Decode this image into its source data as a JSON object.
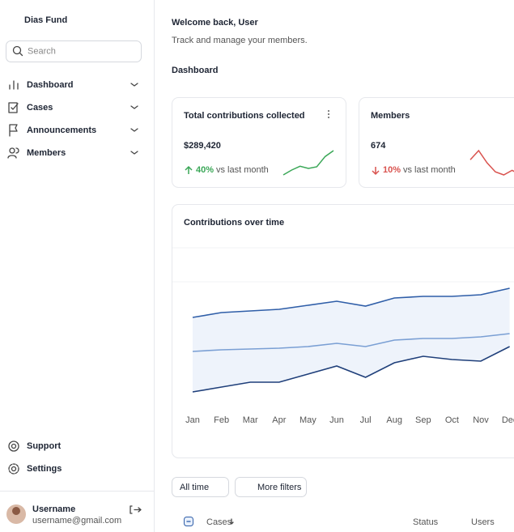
{
  "sidebar": {
    "brand": "Dias Fund",
    "search_placeholder": "Search",
    "nav": [
      "Dashboard",
      "Cases",
      "Announcements",
      "Members"
    ],
    "footer_nav": [
      "Support",
      "Settings"
    ],
    "user": {
      "name": "Username",
      "email": "username@gmail.com"
    }
  },
  "header": {
    "title": "Welcome back, User",
    "subtitle": "Track and manage your members.",
    "section": "Dashboard"
  },
  "cards": [
    {
      "title": "Total contributions collected",
      "value": "$289,420",
      "change": "40%",
      "change_note": "vs last month",
      "trend": "up",
      "color": "#3aa757",
      "sparkline": [
        10,
        28,
        42,
        34,
        40,
        78,
        100
      ]
    },
    {
      "title": "Members",
      "value": "674",
      "change": "10%",
      "change_note": "vs last month",
      "trend": "down",
      "color": "#d9534f",
      "sparkline": [
        70,
        100,
        60,
        30,
        20,
        35,
        20
      ]
    }
  ],
  "chart_data": {
    "type": "line",
    "title": "Contributions over time",
    "categories": [
      "Jan",
      "Feb",
      "Mar",
      "Apr",
      "May",
      "Jun",
      "Jul",
      "Aug",
      "Sep",
      "Oct",
      "Nov",
      "Dec"
    ],
    "ylim": [
      0,
      100
    ],
    "series": [
      {
        "color": "#2f5ea8",
        "values": [
          54,
          57,
          58,
          59,
          61.5,
          64,
          61,
          66,
          67,
          67,
          68,
          72
        ]
      },
      {
        "color": "#7a9fd4",
        "values": [
          33,
          34,
          34.5,
          35,
          36,
          38,
          36,
          40,
          41,
          41,
          42,
          44
        ]
      },
      {
        "color": "#1f3f7a",
        "values": [
          8,
          11,
          14,
          14,
          19,
          24,
          17,
          26,
          30,
          28,
          27,
          36
        ]
      }
    ]
  },
  "filters": [
    "All time",
    "More filters"
  ],
  "table": {
    "columns": [
      "Cases",
      "Status",
      "Users"
    ]
  }
}
